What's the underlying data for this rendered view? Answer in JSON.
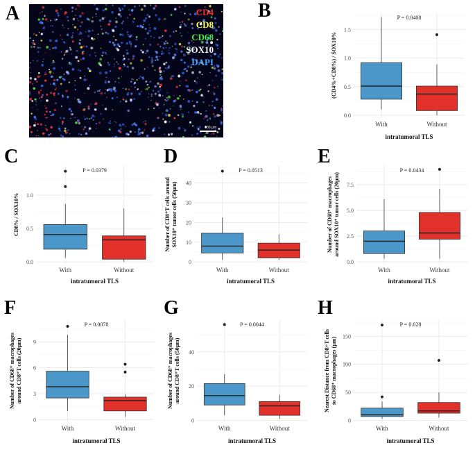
{
  "panels": {
    "A": "A",
    "B": "B",
    "C": "C",
    "D": "D",
    "E": "E",
    "F": "F",
    "G": "G",
    "H": "H"
  },
  "microscopy": {
    "legend": [
      {
        "label": "CD4",
        "color": "#ff2a2a"
      },
      {
        "label": "CD8",
        "color": "#ffff55"
      },
      {
        "label": "CD68",
        "color": "#44ee44"
      },
      {
        "label": "SOX10",
        "color": "#ffffff"
      },
      {
        "label": "DAPI",
        "color": "#4da6ff"
      }
    ],
    "scale_label": "100 μm"
  },
  "colors": {
    "with": "#4b97c9",
    "without": "#e2302a",
    "grid": "#ebebeb"
  },
  "chart_data": [
    {
      "id": "B",
      "type": "box",
      "title": "",
      "pvalue": "P = 0.0408",
      "ylabel": "(CD4%+CD8%) / SOX10%",
      "xlabel": "intratumoral TLS",
      "categories": [
        "With",
        "Without"
      ],
      "ylim": [
        -0.05,
        1.8
      ],
      "ticks": [
        0.0,
        0.5,
        1.0,
        1.5
      ],
      "tick_labels": [
        "0.0",
        "0.5",
        "1.0",
        "1.5"
      ],
      "boxes": [
        {
          "min": 0.1,
          "q1": 0.28,
          "median": 0.51,
          "q3": 0.92,
          "max": 1.72,
          "outliers": []
        },
        {
          "min": 0.0,
          "q1": 0.08,
          "median": 0.37,
          "q3": 0.51,
          "max": 0.89,
          "outliers": [
            1.41
          ]
        }
      ]
    },
    {
      "id": "C",
      "type": "box",
      "pvalue": "P = 0.0379",
      "ylabel": "CD8% / SOX10%",
      "xlabel": "intratumoral TLS",
      "categories": [
        "With",
        "Without"
      ],
      "ylim": [
        -0.03,
        1.45
      ],
      "ticks": [
        0.0,
        0.5,
        1.0
      ],
      "tick_labels": [
        "0.0",
        "0.5",
        "1.0"
      ],
      "boxes": [
        {
          "min": 0.06,
          "q1": 0.19,
          "median": 0.41,
          "q3": 0.56,
          "max": 0.87,
          "outliers": [
            1.13,
            1.36
          ]
        },
        {
          "min": 0.0,
          "q1": 0.04,
          "median": 0.33,
          "q3": 0.39,
          "max": 0.8,
          "outliers": []
        }
      ]
    },
    {
      "id": "D",
      "type": "box",
      "pvalue": "P = 0.0513",
      "ylabel": [
        "Number of CD8⁺T cells around",
        "SOX10⁺ tumor cells (50μm)"
      ],
      "xlabel": "intratumoral TLS",
      "categories": [
        "With",
        "Without"
      ],
      "ylim": [
        -1,
        49
      ],
      "ticks": [
        0,
        10,
        20,
        30,
        40
      ],
      "tick_labels": [
        "0",
        "10",
        "20",
        "30",
        "40"
      ],
      "boxes": [
        {
          "min": 1,
          "q1": 4.5,
          "median": 8,
          "q3": 14.5,
          "max": 22.5,
          "outliers": [
            46
          ]
        },
        {
          "min": 1,
          "q1": 2,
          "median": 6,
          "q3": 9.5,
          "max": 14,
          "outliers": []
        }
      ]
    },
    {
      "id": "E",
      "type": "box",
      "pvalue": "P = 0.0434",
      "ylabel": [
        "Number of CD68⁺ macrophages",
        "around SOX10⁺ tumor cells (20μm)"
      ],
      "xlabel": "intratumoral TLS",
      "categories": [
        "With",
        "Without"
      ],
      "ylim": [
        -0.2,
        9.4
      ],
      "ticks": [
        0.0,
        2.5,
        5.0,
        7.5
      ],
      "tick_labels": [
        "0.0",
        "2.5",
        "5.0",
        "7.5"
      ],
      "boxes": [
        {
          "min": 0.3,
          "q1": 0.8,
          "median": 2.0,
          "q3": 3.0,
          "max": 6.1,
          "outliers": []
        },
        {
          "min": 0.3,
          "q1": 2.2,
          "median": 2.8,
          "q3": 4.8,
          "max": 7.1,
          "outliers": [
            9.0
          ]
        }
      ]
    },
    {
      "id": "F",
      "type": "box",
      "pvalue": "P = 0.0078",
      "ylabel": [
        "Number of CD68⁺ macrophages",
        "around CD8⁺T cells (20μm)"
      ],
      "xlabel": "intratumoral TLS",
      "categories": [
        "With",
        "Without"
      ],
      "ylim": [
        -0.3,
        11.6
      ],
      "ticks": [
        0,
        3,
        6,
        9
      ],
      "tick_labels": [
        "0",
        "3",
        "6",
        "9"
      ],
      "boxes": [
        {
          "min": 1,
          "q1": 2.5,
          "median": 3.8,
          "q3": 5.6,
          "max": 9.8,
          "outliers": [
            10.8
          ]
        },
        {
          "min": 0.3,
          "q1": 1.0,
          "median": 2.2,
          "q3": 2.6,
          "max": 2.9,
          "outliers": [
            5.5,
            6.4
          ]
        }
      ]
    },
    {
      "id": "G",
      "type": "box",
      "pvalue": "P = 0.0044",
      "ylabel": [
        "Number of CD68⁺ macrophages",
        "around CD8⁺T cells (50μm)"
      ],
      "xlabel": "intratumoral TLS",
      "categories": [
        "With",
        "Without"
      ],
      "ylim": [
        -1,
        59
      ],
      "ticks": [
        0,
        20,
        40
      ],
      "tick_labels": [
        "0",
        "20",
        "40"
      ],
      "boxes": [
        {
          "min": 3,
          "q1": 9,
          "median": 14.5,
          "q3": 21.5,
          "max": 27,
          "outliers": [
            56
          ]
        },
        {
          "min": 1,
          "q1": 3,
          "median": 8.5,
          "q3": 11,
          "max": 15,
          "outliers": []
        }
      ]
    },
    {
      "id": "H",
      "type": "box",
      "pvalue": "P = 0.028",
      "ylabel": [
        "Nearest Distance from CD8+T cells",
        "to CD68⁺ macrophages   (μm)"
      ],
      "xlabel": "intratumoral TLS",
      "categories": [
        "With",
        "Without"
      ],
      "ylim": [
        -3,
        180
      ],
      "ticks": [
        0,
        50,
        100,
        150
      ],
      "tick_labels": [
        "0",
        "50",
        "100",
        "150"
      ],
      "boxes": [
        {
          "min": 3,
          "q1": 7,
          "median": 10,
          "q3": 22,
          "max": 34,
          "outliers": [
            42,
            170
          ]
        },
        {
          "min": 5,
          "q1": 13,
          "median": 17,
          "q3": 32,
          "max": 50,
          "outliers": [
            107
          ]
        }
      ]
    }
  ]
}
